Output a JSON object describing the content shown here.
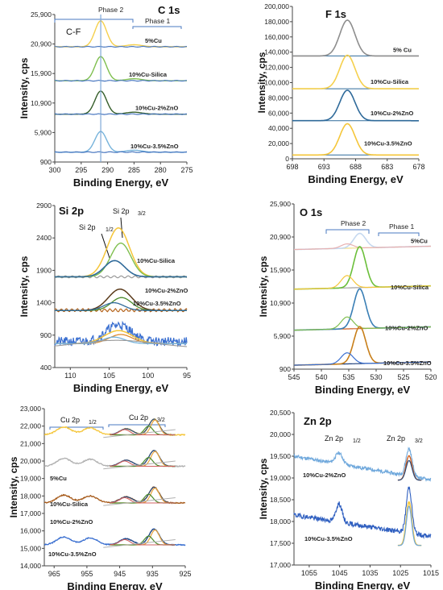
{
  "figure": {
    "panels": [
      {
        "id": "c1s",
        "title": "C 1s",
        "xlabel": "Binding Energy, eV",
        "ylabel": "Intensity, cps",
        "xlim": [
          300,
          275
        ],
        "ylim": [
          900,
          26500
        ],
        "xticks": [
          "300",
          "295",
          "290",
          "285",
          "280",
          "275"
        ],
        "yticks": [
          "25,900",
          "20,900",
          "15,900",
          "10,900",
          "5,900",
          "900"
        ],
        "phase_labels": [
          "Phase 2",
          "Phase 1"
        ],
        "annotation": "C-F",
        "series": [
          "5%Cu",
          "10%Cu-Silica",
          "10%Cu-2%ZnO",
          "10%Cu-3.5%ZnO"
        ],
        "offsets": [
          20900,
          15000,
          9200,
          2600
        ],
        "main_peak_ev": 291.3,
        "colors": [
          "#f5d04d",
          "#7fbf4f",
          "#355e2a",
          "#76b3db"
        ]
      },
      {
        "id": "f1s",
        "title": "F 1s",
        "xlabel": "Binding Energy, eV",
        "ylabel": "Intensity, cps",
        "xlim": [
          698,
          678
        ],
        "ylim": [
          0,
          200000
        ],
        "xticks": [
          "698",
          "693",
          "688",
          "683",
          "678"
        ],
        "yticks": [
          "200,000",
          "180,000",
          "160,000",
          "140,000",
          "120,000",
          "100,000",
          "80,000",
          "60,000",
          "40,000",
          "20,000",
          "0"
        ],
        "series": [
          "5% Cu",
          "10%Cu-Silica",
          "10%Cu-2%ZnO",
          "10%Cu-3.5%ZnO"
        ],
        "offsets": [
          135000,
          92000,
          50000,
          5000
        ],
        "peak_heights": [
          47000,
          44000,
          40000,
          41000
        ],
        "peak_ev": 689.3,
        "colors": [
          "#8e8e8e",
          "#f5d04d",
          "#2f6a9a",
          "#f5c63a"
        ]
      },
      {
        "id": "si2p",
        "title": "Si 2p",
        "xlabel": "Binding Energy, eV",
        "ylabel": "Intensity, cps",
        "xlim": [
          112,
          95
        ],
        "ylim": [
          400,
          2900
        ],
        "xticks": [
          "110",
          "105",
          "100",
          "95"
        ],
        "yticks": [
          "2900",
          "2400",
          "1900",
          "1400",
          "900",
          "400"
        ],
        "labels": [
          "2p1/2",
          "2p3/2"
        ],
        "series": [
          "10%Cu-Silica",
          "10%Cu-2%ZnO",
          "10%Cu-3.5%ZnO"
        ]
      },
      {
        "id": "o1s",
        "title": "O 1s",
        "xlabel": "Binding Energy, eV",
        "ylabel": "Intensity, cps",
        "xlim": [
          545,
          520
        ],
        "ylim": [
          900,
          25900
        ],
        "xticks": [
          "545",
          "540",
          "535",
          "530",
          "525",
          "520"
        ],
        "yticks": [
          "25,900",
          "20,900",
          "15,900",
          "10,900",
          "5,900",
          "900"
        ],
        "phase_labels": [
          "Phase 2",
          "Phase 1"
        ],
        "series": [
          "5%Cu",
          "10%Cu-Silica",
          "10%Cu-2%ZnO",
          "10%Cu-3.5%ZnO"
        ]
      },
      {
        "id": "cu2p",
        "title": "",
        "xlabel": "Binding Energy, eV",
        "ylabel": "Intensity, cps",
        "xlim": [
          968,
          925
        ],
        "ylim": [
          14000,
          23000
        ],
        "xticks": [
          "965",
          "955",
          "945",
          "935",
          "925"
        ],
        "yticks": [
          "23,000",
          "22,000",
          "21,000",
          "20,000",
          "19,000",
          "18,000",
          "17,000",
          "16,000",
          "15,000",
          "14,000"
        ],
        "labels": [
          "Cu 2p1/2",
          "Cu 2p3/2"
        ],
        "series": [
          "5%Cu",
          "10%Cu-Silica",
          "10%Cu-2%ZnO",
          "10%Cu-3.5%ZnO"
        ]
      },
      {
        "id": "zn2p",
        "title": "Zn 2p",
        "xlabel": "Binding Energy, eV",
        "ylabel": "Intensity, cps",
        "xlim": [
          1060,
          1015
        ],
        "ylim": [
          17000,
          20500
        ],
        "xticks": [
          "1055",
          "1045",
          "1035",
          "1025",
          "1015"
        ],
        "yticks": [
          "20,500",
          "20,000",
          "19,500",
          "19,000",
          "18,500",
          "18,000",
          "17,500",
          "17,000"
        ],
        "labels": [
          "Zn 2p1/2",
          "Zn 2p3/2"
        ],
        "series": [
          "10%Cu-2%ZnO",
          "10%Cu-3.5%ZnO"
        ]
      }
    ]
  }
}
